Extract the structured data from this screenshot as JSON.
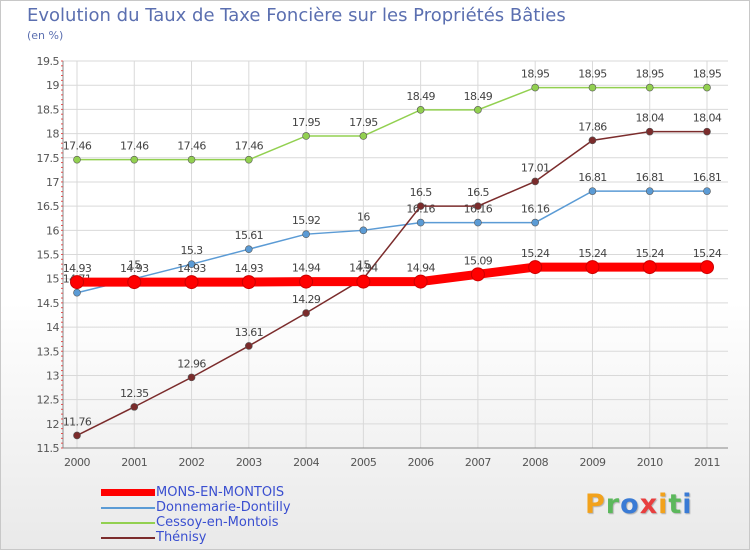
{
  "chart_data": {
    "type": "line",
    "title": "Evolution du Taux de Taxe Foncière sur les Propriétés Bâties",
    "ylabel": "(en %)",
    "xlabel": "",
    "x": [
      "2000",
      "2001",
      "2002",
      "2003",
      "2004",
      "2005",
      "2006",
      "2007",
      "2008",
      "2009",
      "2010",
      "2011"
    ],
    "ylim": [
      11.5,
      19.5
    ],
    "yticks": [
      "11.5",
      "12",
      "12.5",
      "13",
      "13.5",
      "14",
      "14.5",
      "15",
      "15.5",
      "16",
      "16.5",
      "17",
      "17.5",
      "18",
      "18.5",
      "19",
      "19.5"
    ],
    "grid": true,
    "legend_position": "bottom-left",
    "series": [
      {
        "name": "MONS-EN-MONTOIS",
        "color": "#ff0000",
        "emphasis": true,
        "values": [
          14.93,
          14.93,
          14.93,
          14.93,
          14.94,
          14.94,
          14.94,
          15.09,
          15.24,
          15.24,
          15.24,
          15.24
        ],
        "labels": [
          "14.93",
          "14.93",
          "14.93",
          "14.93",
          "14.94",
          "14.94",
          "14.94",
          "15.09",
          "15.24",
          "15.24",
          "15.24",
          "15.24"
        ]
      },
      {
        "name": "Donnemarie-Dontilly",
        "color": "#5b9bd5",
        "values": [
          14.71,
          15,
          15.3,
          15.61,
          15.92,
          16,
          16.16,
          16.16,
          16.16,
          16.81,
          16.81,
          16.81
        ],
        "labels": [
          "14.71",
          "15",
          "15.3",
          "15.61",
          "15.92",
          "16",
          "16.16",
          "16.16",
          "16.16",
          "16.81",
          "16.81",
          "16.81"
        ]
      },
      {
        "name": "Cessoy-en-Montois",
        "color": "#92d050",
        "values": [
          17.46,
          17.46,
          17.46,
          17.46,
          17.95,
          17.95,
          18.49,
          18.49,
          18.95,
          18.95,
          18.95,
          18.95
        ],
        "labels": [
          "17.46",
          "17.46",
          "17.46",
          "17.46",
          "17.95",
          "17.95",
          "18.49",
          "18.49",
          "18.95",
          "18.95",
          "18.95",
          "18.95"
        ]
      },
      {
        "name": "Thénisy",
        "color": "#7b2c2c",
        "values": [
          11.76,
          12.35,
          12.96,
          13.61,
          14.29,
          15,
          16.5,
          16.5,
          17.01,
          17.86,
          18.04,
          18.04
        ],
        "labels": [
          "11.76",
          "12.35",
          "12.96",
          "13.61",
          "14.29",
          "15",
          "16.5",
          "16.5",
          "17.01",
          "17.86",
          "18.04",
          "18.04"
        ]
      }
    ]
  },
  "brand": {
    "letters": [
      "P",
      "r",
      "o",
      "x",
      "i",
      "t",
      "i"
    ],
    "colors": [
      "#f2a21c",
      "#5cb85c",
      "#3a7bd5",
      "#e83e3e",
      "#f2a21c",
      "#5cb85c",
      "#3a7bd5"
    ]
  }
}
